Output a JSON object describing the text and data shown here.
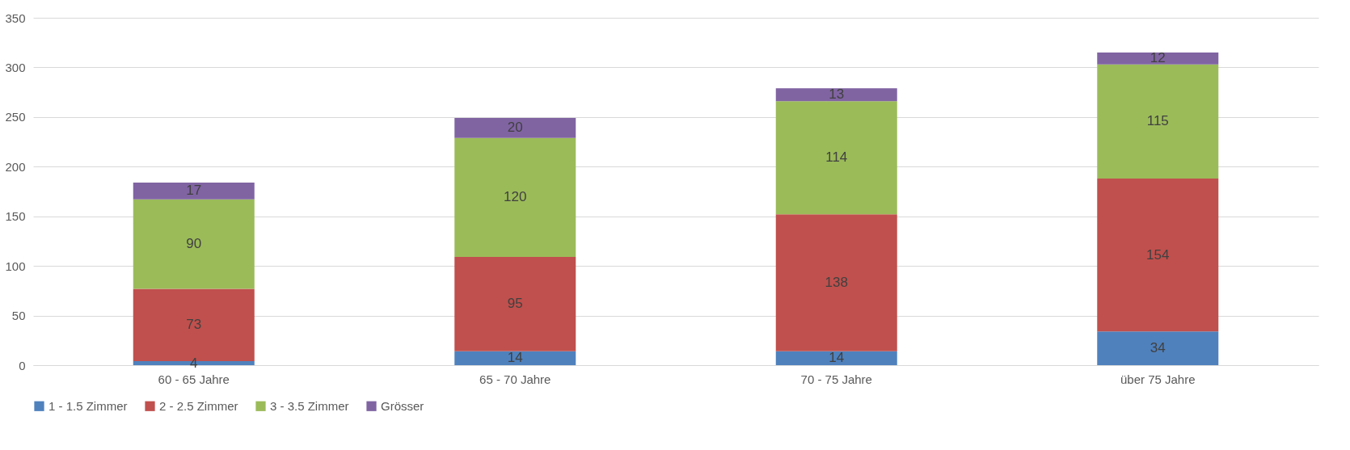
{
  "chart_data": {
    "type": "bar",
    "stacked": true,
    "categories": [
      "60 - 65 Jahre",
      "65 - 70 Jahre",
      "70 - 75 Jahre",
      "über 75 Jahre"
    ],
    "series": [
      {
        "name": "1 - 1.5 Zimmer",
        "color": "#4f81bd",
        "values": [
          4,
          14,
          14,
          34
        ]
      },
      {
        "name": "2 - 2.5 Zimmer",
        "color": "#c0504d",
        "values": [
          73,
          95,
          138,
          154
        ]
      },
      {
        "name": "3 - 3.5 Zimmer",
        "color": "#9bbb59",
        "values": [
          90,
          120,
          114,
          115
        ]
      },
      {
        "name": "Grösser",
        "color": "#8064a2",
        "values": [
          17,
          20,
          13,
          12
        ]
      }
    ],
    "ylim": [
      0,
      350
    ],
    "yticks": [
      0,
      50,
      100,
      150,
      200,
      250,
      300,
      350
    ],
    "grid": "y",
    "legend": "bottom",
    "data_labels": true
  }
}
